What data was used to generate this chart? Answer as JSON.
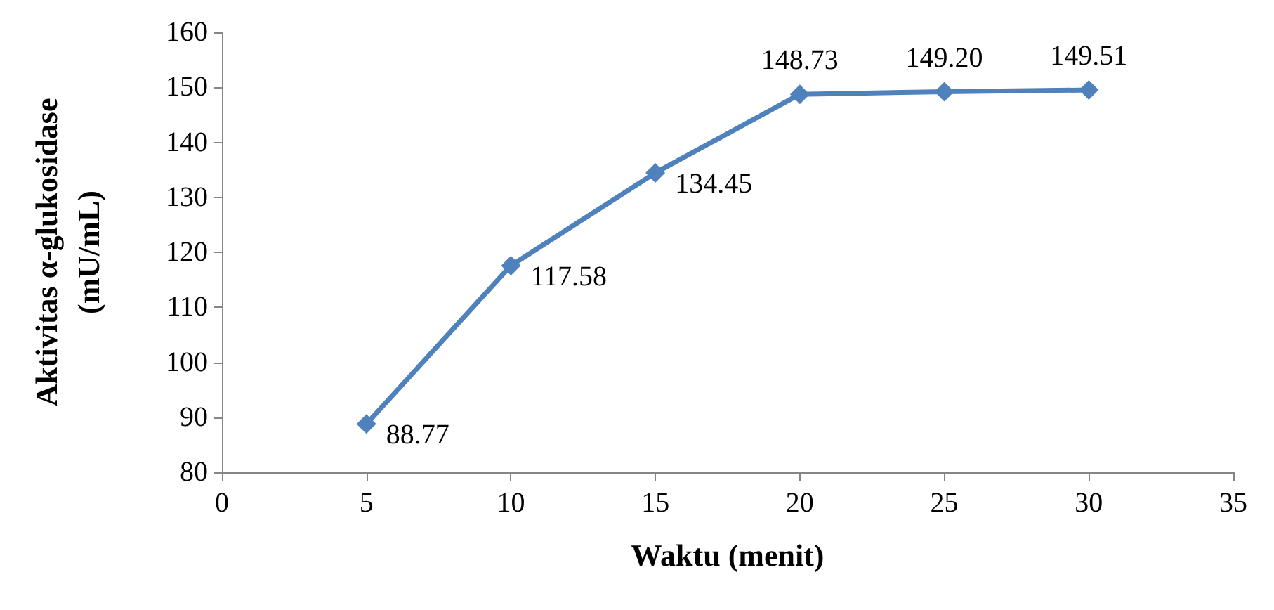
{
  "chart_data": {
    "type": "line",
    "xlabel": "Waktu (menit)",
    "ylabel": "Aktivitas α-glukosidase\n(mU/mL)",
    "x": [
      5,
      10,
      15,
      20,
      25,
      30
    ],
    "series": [
      {
        "color": "#4f81bd",
        "values": [
          88.77,
          117.58,
          134.45,
          148.73,
          149.2,
          149.51
        ],
        "value_labels": [
          "88.77",
          "117.58",
          "134.45",
          "148.73",
          "149.20",
          "149.51"
        ]
      }
    ],
    "xlim": [
      0,
      35
    ],
    "xticks": [
      0,
      5,
      10,
      15,
      20,
      25,
      30,
      35
    ],
    "ylim": [
      80,
      160
    ],
    "yticks": [
      80,
      90,
      100,
      110,
      120,
      130,
      140,
      150,
      160
    ],
    "grid": false,
    "marker": "diamond",
    "line_style": "solid"
  }
}
